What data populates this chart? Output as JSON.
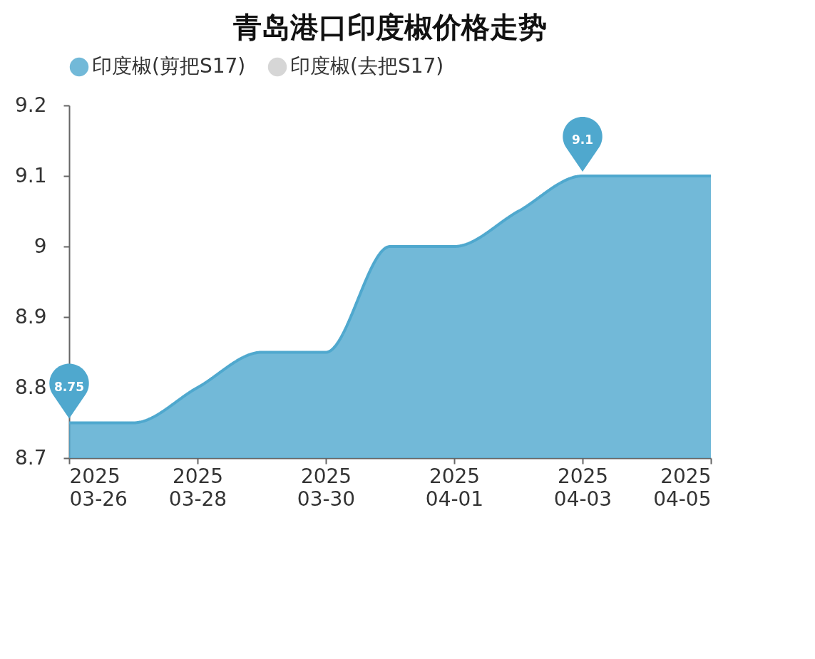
{
  "chart_data": {
    "type": "area",
    "title": "青岛港口印度椒价格走势",
    "x": [
      "2025-03-26",
      "2025-03-27",
      "2025-03-28",
      "2025-03-29",
      "2025-03-30",
      "2025-03-31",
      "2025-04-01",
      "2025-04-02",
      "2025-04-03",
      "2025-04-04",
      "2025-04-05"
    ],
    "series": [
      {
        "name": "印度椒(剪把S17)",
        "color": "#4fa8ce",
        "values": [
          8.75,
          8.75,
          8.8,
          8.85,
          8.85,
          9.0,
          9.0,
          9.05,
          9.1,
          9.1,
          9.1
        ]
      },
      {
        "name": "印度椒(去把S17)",
        "color": "#cccccc",
        "values": [
          null,
          null,
          null,
          null,
          null,
          null,
          null,
          null,
          null,
          null,
          null
        ]
      }
    ],
    "xlim": [
      "2025-03-26",
      "2025-04-05"
    ],
    "xticks": [
      {
        "value": "2025-03-26",
        "label": "2025\n03-26"
      },
      {
        "value": "2025-03-28",
        "label": "2025\n03-28"
      },
      {
        "value": "2025-03-30",
        "label": "2025\n03-30"
      },
      {
        "value": "2025-04-01",
        "label": "2025\n04-01"
      },
      {
        "value": "2025-04-03",
        "label": "2025\n04-03"
      },
      {
        "value": "2025-04-05",
        "label": "2025\n04-05"
      }
    ],
    "ylim": [
      8.7,
      9.2
    ],
    "yticks": [
      8.7,
      8.8,
      8.9,
      9,
      9.1,
      9.2
    ],
    "annotations": [
      {
        "text": "8.75",
        "x": "2025-03-26",
        "y": 8.75
      },
      {
        "text": "9.1",
        "x": "2025-04-03",
        "y": 9.1
      }
    ],
    "grid": false,
    "legend": "top",
    "marker": "none",
    "line_style": "solid"
  }
}
